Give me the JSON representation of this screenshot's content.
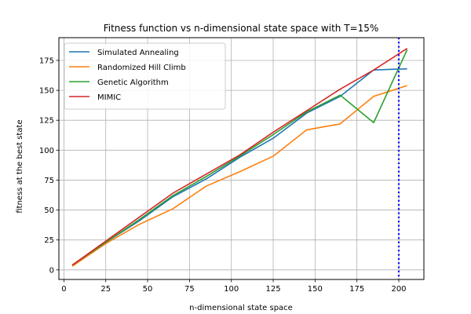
{
  "chart_data": {
    "type": "line",
    "title": "Fitness function vs n-dimensional state space with T=15%",
    "xlabel": "n-dimensional state space",
    "ylabel": "fitness at the best state",
    "xlim": [
      -3,
      215
    ],
    "ylim": [
      -8,
      194
    ],
    "xticks": [
      0,
      25,
      50,
      75,
      100,
      125,
      150,
      175,
      200
    ],
    "yticks": [
      0,
      25,
      50,
      75,
      100,
      125,
      150,
      175
    ],
    "grid": true,
    "legend_position": "top-left",
    "x": [
      5,
      25,
      45,
      65,
      85,
      105,
      125,
      145,
      165,
      185,
      205
    ],
    "series": [
      {
        "name": "Simulated Annealing",
        "color": "#1f77b4",
        "values": [
          4,
          23,
          41,
          61,
          76,
          94,
          110,
          131,
          145,
          167,
          168
        ]
      },
      {
        "name": "Randomized Hill Climb",
        "color": "#ff7f0e",
        "values": [
          3,
          22,
          38,
          51,
          70,
          82,
          95,
          117,
          122,
          145,
          154
        ]
      },
      {
        "name": "Genetic Algorithm",
        "color": "#2ca02c",
        "values": [
          4,
          23,
          42,
          62,
          78,
          95,
          113,
          132,
          146,
          123,
          184
        ]
      },
      {
        "name": "MIMIC",
        "color": "#d62728",
        "values": [
          4,
          24,
          44,
          64,
          80,
          96,
          115,
          133,
          151,
          167,
          185
        ]
      }
    ],
    "annotations": [
      {
        "type": "vline",
        "x": 200,
        "style": "dotted",
        "color": "#0000ff"
      }
    ]
  }
}
